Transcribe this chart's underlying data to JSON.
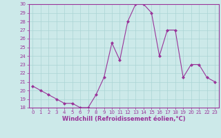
{
  "x": [
    0,
    1,
    2,
    3,
    4,
    5,
    6,
    7,
    8,
    9,
    10,
    11,
    12,
    13,
    14,
    15,
    16,
    17,
    18,
    19,
    20,
    21,
    22,
    23
  ],
  "y": [
    20.5,
    20.0,
    19.5,
    19.0,
    18.5,
    18.5,
    18.0,
    18.0,
    19.5,
    21.5,
    25.5,
    23.5,
    28.0,
    30.0,
    30.0,
    29.0,
    24.0,
    27.0,
    27.0,
    21.5,
    23.0,
    23.0,
    21.5,
    21.0
  ],
  "line_color": "#993399",
  "marker": "D",
  "marker_size": 2,
  "bg_color": "#cce9e9",
  "grid_color": "#aad4d4",
  "xlabel": "Windchill (Refroidissement éolien,°C)",
  "xlabel_color": "#993399",
  "tick_color": "#993399",
  "spine_color": "#993399",
  "ylim": [
    18,
    30
  ],
  "xlim": [
    -0.5,
    23.5
  ],
  "yticks": [
    18,
    19,
    20,
    21,
    22,
    23,
    24,
    25,
    26,
    27,
    28,
    29,
    30
  ],
  "xticks": [
    0,
    1,
    2,
    3,
    4,
    5,
    6,
    7,
    8,
    9,
    10,
    11,
    12,
    13,
    14,
    15,
    16,
    17,
    18,
    19,
    20,
    21,
    22,
    23
  ],
  "tick_fontsize": 5,
  "xlabel_fontsize": 6
}
